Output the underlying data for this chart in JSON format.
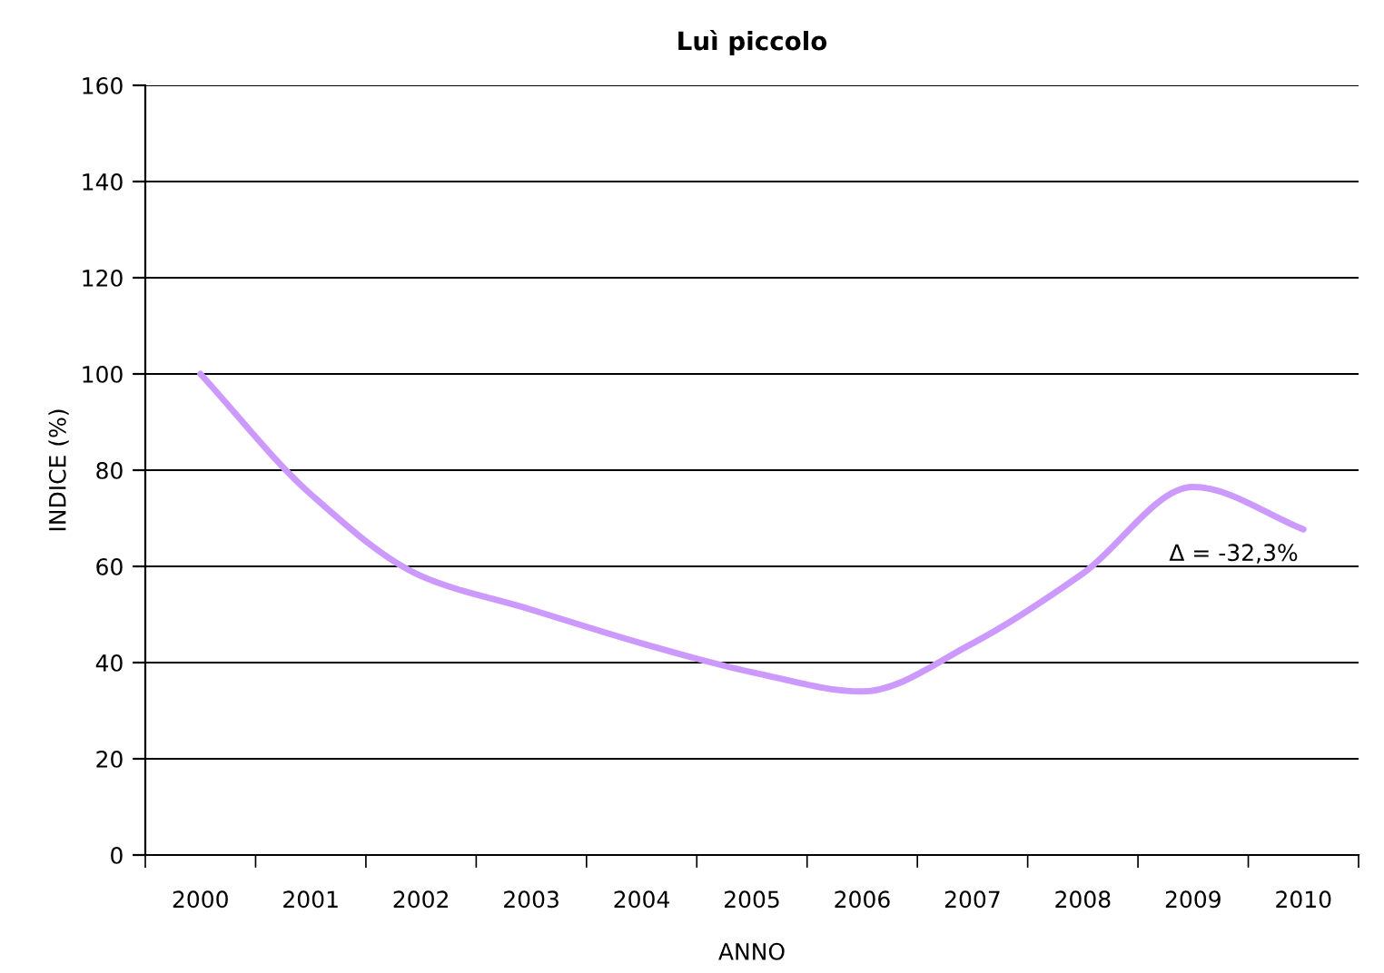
{
  "chart_data": {
    "type": "line",
    "title": "Luì piccolo",
    "xlabel": "ANNO",
    "ylabel": "INDICE (%)",
    "categories": [
      "2000",
      "2001",
      "2002",
      "2003",
      "2004",
      "2005",
      "2006",
      "2007",
      "2008",
      "2009",
      "2010"
    ],
    "series": [
      {
        "color": "#cc99ff",
        "values": [
          100,
          75,
          58,
          51,
          44,
          38,
          34,
          44,
          58.5,
          76.5,
          67.7
        ]
      }
    ],
    "ylim": [
      0,
      160
    ],
    "yticks": [
      0,
      20,
      40,
      60,
      80,
      100,
      120,
      140,
      160
    ],
    "grid": "y",
    "legend": false,
    "marker": "none",
    "line_style": "solid",
    "annotations": [
      {
        "text": "Δ = -32,3%",
        "x": "2010",
        "y": 67.7
      }
    ]
  }
}
